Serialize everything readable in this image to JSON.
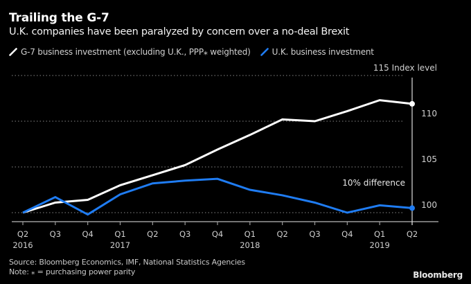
{
  "header": {
    "title": "Trailing the G-7",
    "subtitle": "U.K. companies have been paralyzed by concern over a no-deal Brexit"
  },
  "legend": [
    {
      "label": "G-7 business investment (excluding U.K., PPP⁎ weighted)",
      "color": "#ffffff",
      "icon": "slash-line-icon"
    },
    {
      "label": "U.K. business investment",
      "color": "#1f7cf2",
      "icon": "slash-line-icon"
    }
  ],
  "footer": {
    "source": "Source: Bloomberg Economics, IMF, National Statistics Agencies",
    "note": "Note: ⁎ = purchasing power parity",
    "brand": "Bloomberg"
  },
  "chart_data": {
    "type": "line",
    "title": "Trailing the G-7",
    "subtitle": "U.K. companies have been paralyzed by concern over a no-deal Brexit",
    "xlabel": "",
    "ylabel": "Index level",
    "y_unit_label": "Index level",
    "ylim": [
      99.2,
      115
    ],
    "yticks": [
      100,
      105,
      110,
      115
    ],
    "grid": true,
    "legend_position": "top-left",
    "categories": [
      "Q2 2016",
      "Q3 2016",
      "Q4 2016",
      "Q1 2017",
      "Q2 2017",
      "Q3 2017",
      "Q4 2017",
      "Q1 2018",
      "Q2 2018",
      "Q3 2018",
      "Q4 2018",
      "Q1 2019",
      "Q2 2019"
    ],
    "x_tick_labels": [
      {
        "q": "Q2",
        "year": "2016"
      },
      {
        "q": "Q3",
        "year": ""
      },
      {
        "q": "Q4",
        "year": ""
      },
      {
        "q": "Q1",
        "year": "2017"
      },
      {
        "q": "Q2",
        "year": ""
      },
      {
        "q": "Q3",
        "year": ""
      },
      {
        "q": "Q4",
        "year": ""
      },
      {
        "q": "Q1",
        "year": "2018"
      },
      {
        "q": "Q2",
        "year": ""
      },
      {
        "q": "Q3",
        "year": ""
      },
      {
        "q": "Q4",
        "year": ""
      },
      {
        "q": "Q1",
        "year": "2019"
      },
      {
        "q": "Q2",
        "year": ""
      }
    ],
    "series": [
      {
        "name": "G-7 business investment (excluding U.K., PPP* weighted)",
        "color": "#ffffff",
        "values": [
          100.0,
          101.1,
          101.4,
          103.0,
          104.1,
          105.2,
          106.9,
          108.5,
          110.2,
          110.0,
          111.1,
          112.3,
          111.9
        ]
      },
      {
        "name": "U.K. business investment",
        "color": "#1f7cf2",
        "values": [
          100.0,
          101.7,
          99.8,
          102.0,
          103.2,
          103.5,
          103.7,
          102.5,
          101.9,
          101.1,
          100.0,
          100.8,
          100.5
        ]
      }
    ],
    "annotations": [
      {
        "text": "10% difference",
        "at": "Q2 2019"
      }
    ]
  }
}
